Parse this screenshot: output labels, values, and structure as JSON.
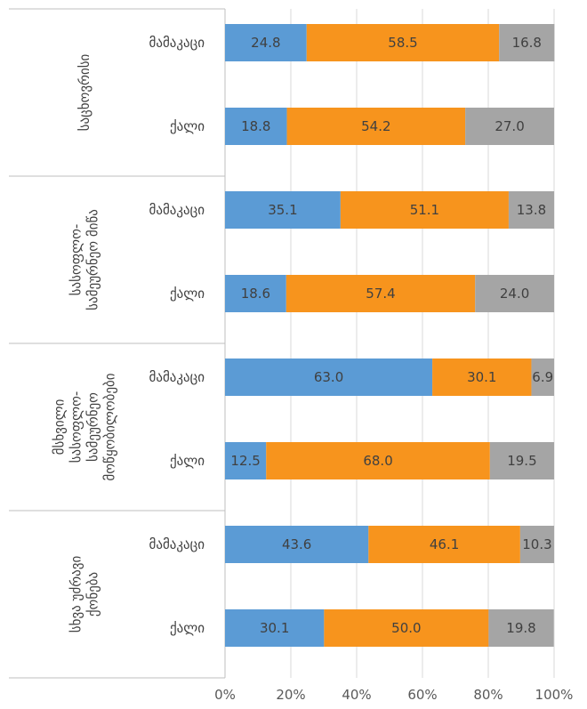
{
  "chart_data": {
    "type": "bar",
    "orientation": "horizontal",
    "stacked": "percent",
    "xlim": [
      0,
      100
    ],
    "x_ticks": [
      "0%",
      "20%",
      "40%",
      "60%",
      "80%",
      "100%"
    ],
    "grid": true,
    "legend": "none",
    "groups": [
      {
        "label": "საცხოვრისი",
        "rows": [
          {
            "category": "მამაკაცი",
            "values": [
              24.8,
              58.5,
              16.8
            ],
            "labels": [
              "24.8",
              "58.5",
              "16.8"
            ]
          },
          {
            "category": "ქალი",
            "values": [
              18.8,
              54.2,
              27.0
            ],
            "labels": [
              "18.8",
              "54.2",
              "27.0"
            ]
          }
        ]
      },
      {
        "label": "სასოფლო-სამეურნეო მიწა",
        "label_lines": [
          "სასოფლო-",
          "სამეურნეო მიწა"
        ],
        "rows": [
          {
            "category": "მამაკაცი",
            "values": [
              35.1,
              51.1,
              13.8
            ],
            "labels": [
              "35.1",
              "51.1",
              "13.8"
            ]
          },
          {
            "category": "ქალი",
            "values": [
              18.6,
              57.4,
              24.0
            ],
            "labels": [
              "18.6",
              "57.4",
              "24.0"
            ]
          }
        ]
      },
      {
        "label": "მსხვილი სასოფლო-სამეურნეო მოწყობილობები",
        "label_lines": [
          "მსხვილი",
          "სასოფლო-",
          "სამეურნეო",
          "მოწყობილობები"
        ],
        "rows": [
          {
            "category": "მამაკაცი",
            "values": [
              63.0,
              30.1,
              6.9
            ],
            "labels": [
              "63.0",
              "30.1",
              "6.9"
            ]
          },
          {
            "category": "ქალი",
            "values": [
              12.5,
              68.0,
              19.5
            ],
            "labels": [
              "12.5",
              "68.0",
              "19.5"
            ]
          }
        ]
      },
      {
        "label": "სხვა უძრავი ქონება",
        "label_lines": [
          "სხვა უძრავი",
          "ქონება"
        ],
        "rows": [
          {
            "category": "მამაკაცი",
            "values": [
              43.6,
              46.1,
              10.3
            ],
            "labels": [
              "43.6",
              "46.1",
              "10.3"
            ]
          },
          {
            "category": "ქალი",
            "values": [
              30.1,
              50.0,
              19.8
            ],
            "labels": [
              "30.1",
              "50.0",
              "19.8"
            ]
          }
        ]
      }
    ],
    "series_colors": [
      "#5B9BD5",
      "#F7941D",
      "#A5A5A5"
    ]
  }
}
